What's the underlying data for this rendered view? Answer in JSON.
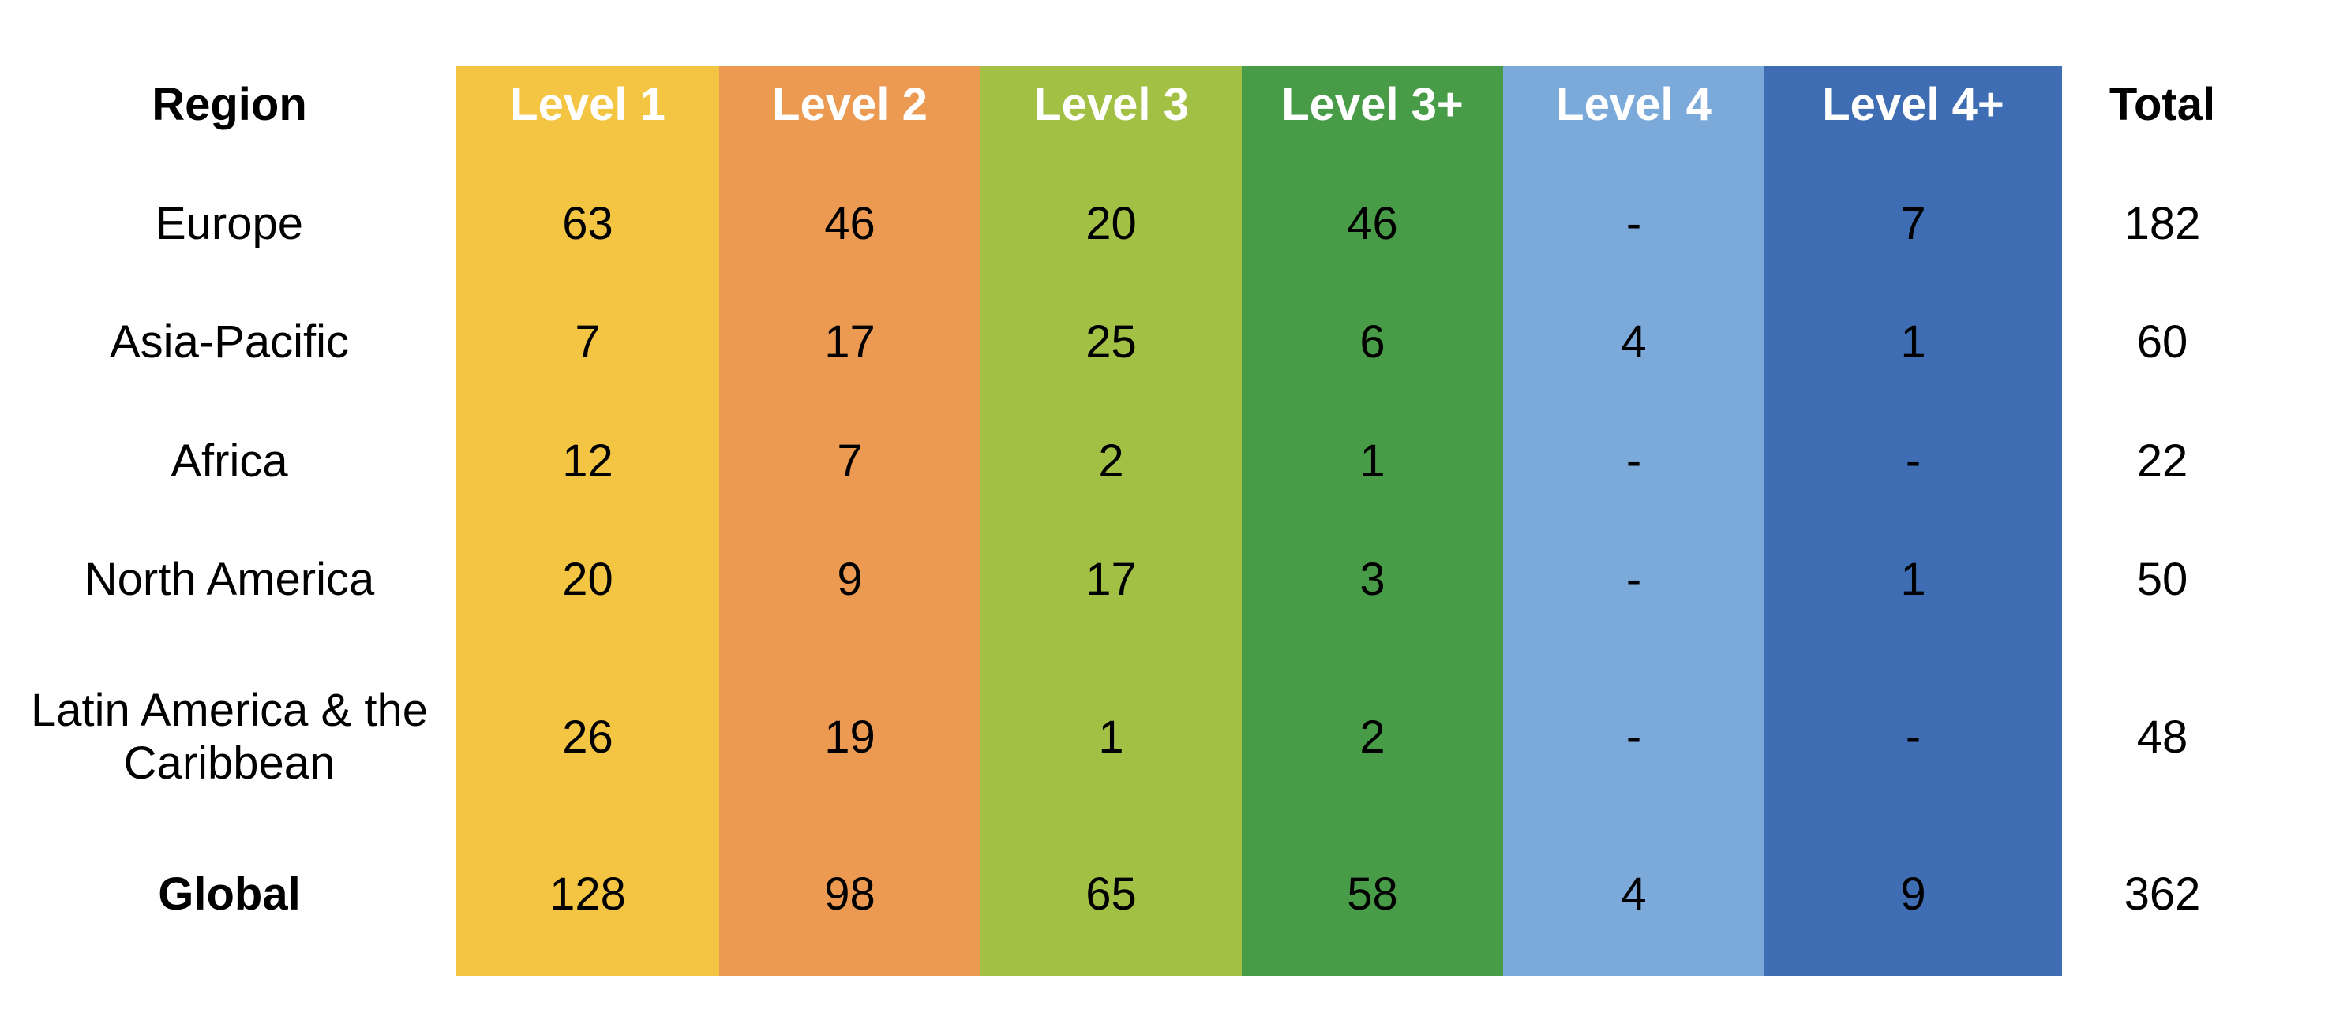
{
  "chart_data": {
    "type": "table",
    "columns": [
      "Region",
      "Level 1",
      "Level 2",
      "Level 3",
      "Level 3+",
      "Level 4",
      "Level 4+",
      "Total"
    ],
    "column_colors": [
      "#ffffff",
      "#f4c542",
      "#ec9a52",
      "#a2c043",
      "#489c47",
      "#7ba9d9",
      "#3e6db3",
      "#ffffff"
    ],
    "rows": [
      [
        "Europe",
        "63",
        "46",
        "20",
        "46",
        "-",
        "7",
        "182"
      ],
      [
        "Asia-Pacific",
        "7",
        "17",
        "25",
        "6",
        "4",
        "1",
        "60"
      ],
      [
        "Africa",
        "12",
        "7",
        "2",
        "1",
        "-",
        "-",
        "22"
      ],
      [
        "North America",
        "20",
        "9",
        "17",
        "3",
        "-",
        "1",
        "50"
      ],
      [
        "Latin America & the Caribbean",
        "26",
        "19",
        "1",
        "2",
        "-",
        "-",
        "48"
      ],
      [
        "Global",
        "128",
        "98",
        "65",
        "58",
        "4",
        "9",
        "362"
      ]
    ]
  }
}
